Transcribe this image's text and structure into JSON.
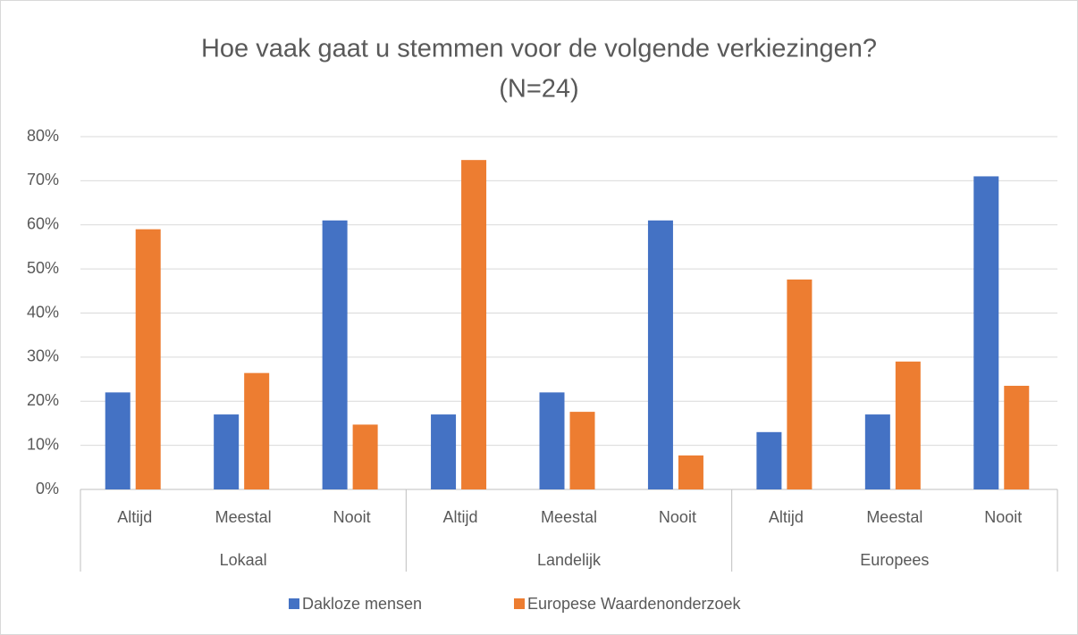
{
  "chart_data": {
    "type": "bar",
    "title": [
      "Hoe vaak gaat u stemmen voor de volgende verkiezingen?",
      "(N=24)"
    ],
    "categories": [
      "Altijd",
      "Meestal",
      "Nooit",
      "Altijd",
      "Meestal",
      "Nooit",
      "Altijd",
      "Meestal",
      "Nooit"
    ],
    "groups": [
      "Lokaal",
      "Landelijk",
      "Europees"
    ],
    "series": [
      {
        "name": "Dakloze mensen",
        "color": "#4472c4",
        "values": [
          22,
          17,
          61,
          17,
          22,
          61,
          13,
          17,
          71
        ]
      },
      {
        "name": "Europese Waardenonderzoek",
        "color": "#ed7d31",
        "values": [
          59,
          26.4,
          14.7,
          74.7,
          17.6,
          7.7,
          47.6,
          29,
          23.5
        ]
      }
    ],
    "ylim": [
      0,
      80
    ],
    "yticks": [
      {
        "value": 0,
        "label": "0%"
      },
      {
        "value": 10,
        "label": "10%"
      },
      {
        "value": 20,
        "label": "20%"
      },
      {
        "value": 30,
        "label": "30%"
      },
      {
        "value": 40,
        "label": "40%"
      },
      {
        "value": 50,
        "label": "50%"
      },
      {
        "value": 60,
        "label": "60%"
      },
      {
        "value": 70,
        "label": "70%"
      },
      {
        "value": 80,
        "label": "80%"
      }
    ],
    "grid": true,
    "legend": "bottom"
  }
}
